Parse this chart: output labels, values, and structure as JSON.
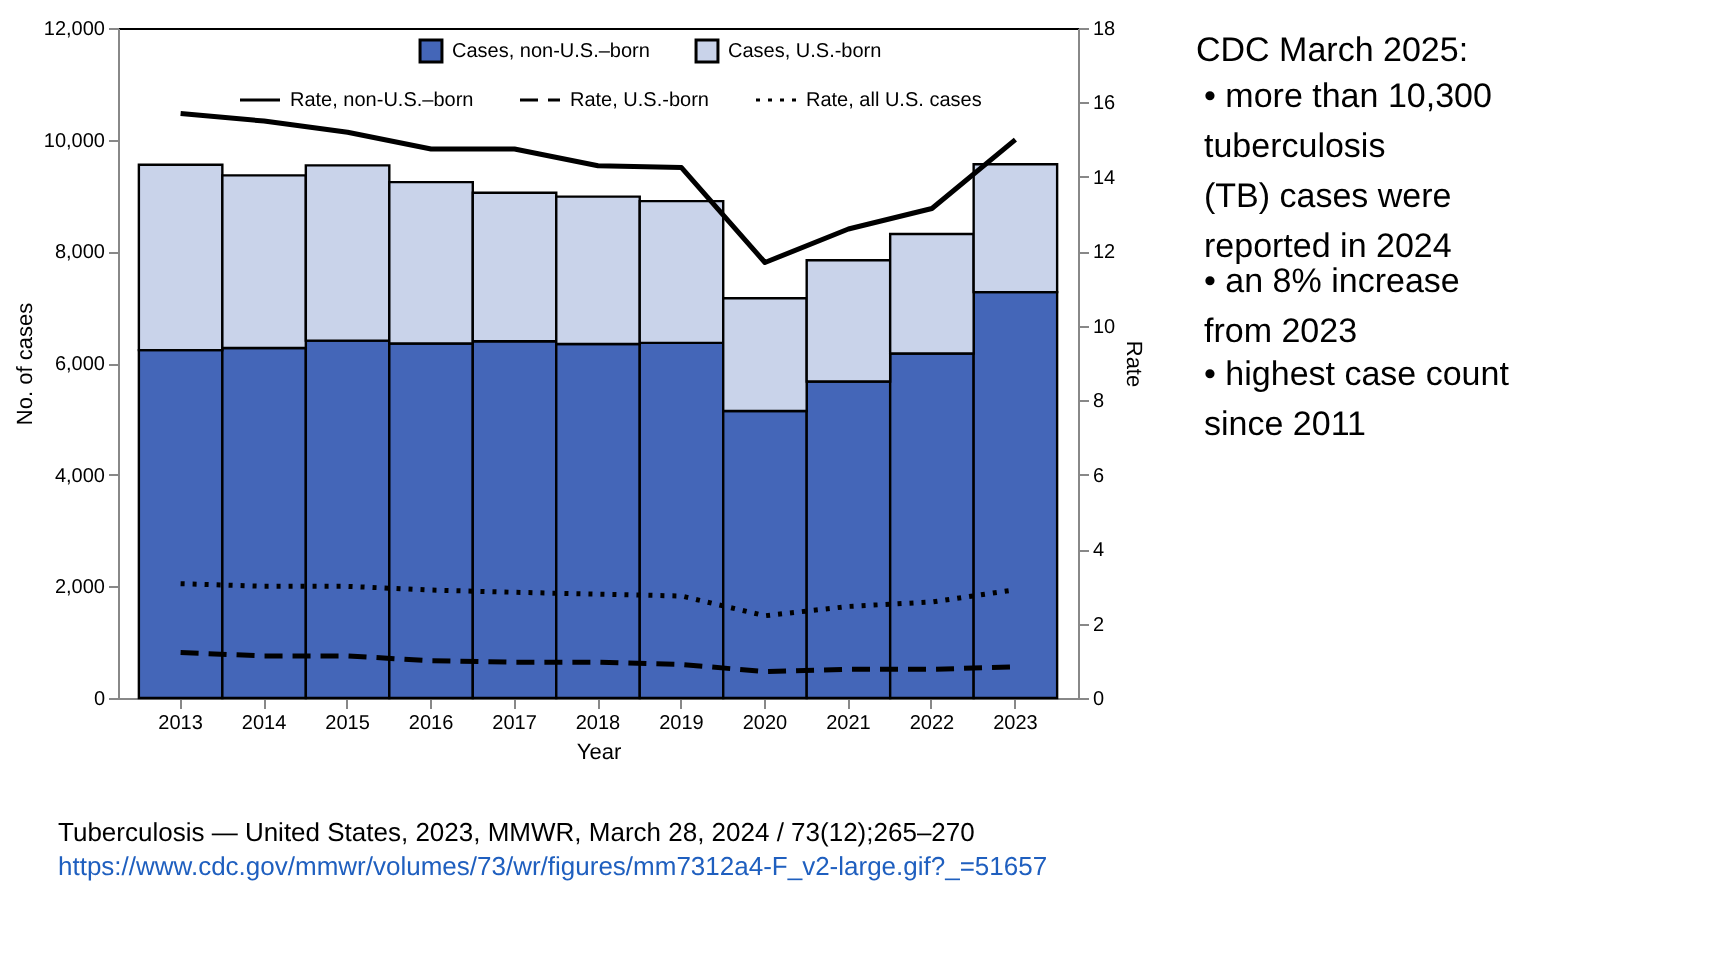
{
  "chart_data": [
    {
      "type": "bar",
      "stacked": true,
      "categories": [
        "2013",
        "2014",
        "2015",
        "2016",
        "2017",
        "2018",
        "2019",
        "2020",
        "2021",
        "2022",
        "2023"
      ],
      "xlabel": "Year",
      "ylabel": "No. of cases",
      "y2label": "Rate",
      "ylim": [
        0,
        12000
      ],
      "yticks": [
        0,
        {
          "value": 2000,
          "label": "2,000"
        },
        {
          "value": 4000,
          "label": "4,000"
        },
        {
          "value": 6000,
          "label": "6,000"
        },
        {
          "value": 8000,
          "label": "8,000"
        },
        {
          "value": 10000,
          "label": "10,000"
        },
        {
          "value": 12000,
          "label": "12,000"
        }
      ],
      "y2lim": [
        0,
        18
      ],
      "y2ticks": [
        0,
        2,
        4,
        6,
        8,
        10,
        12,
        14,
        16,
        18
      ],
      "legend": "top",
      "grid": false,
      "series": [
        {
          "name": "Cases, non-U.S.–born",
          "color": "#4466b8",
          "values": [
            6230,
            6270,
            6400,
            6350,
            6390,
            6340,
            6360,
            5140,
            5670,
            6170,
            7270
          ]
        },
        {
          "name": "Cases, U.S.-born",
          "color": "#c9d3ea",
          "values": [
            3320,
            3090,
            3140,
            2890,
            2660,
            2640,
            2540,
            2020,
            2170,
            2140,
            2290
          ]
        },
        {
          "name": "Rate, non-U.S.–born",
          "type": "line",
          "axis": "y2",
          "line_style": "solid",
          "color": "#000000",
          "values": [
            15.7,
            15.5,
            15.2,
            14.75,
            14.75,
            14.3,
            14.25,
            11.7,
            12.6,
            13.15,
            15.0
          ]
        },
        {
          "name": "Rate, U.S.-born",
          "type": "line",
          "axis": "y2",
          "line_style": "dashed",
          "color": "#000000",
          "values": [
            1.22,
            1.13,
            1.13,
            1.0,
            0.96,
            0.96,
            0.9,
            0.71,
            0.77,
            0.77,
            0.84
          ]
        },
        {
          "name": "Rate, all U.S. cases",
          "type": "line",
          "axis": "y2",
          "line_style": "dotted",
          "color": "#000000",
          "values": [
            3.07,
            3.0,
            3.0,
            2.9,
            2.84,
            2.79,
            2.74,
            2.21,
            2.46,
            2.58,
            2.91
          ]
        }
      ],
      "annotations": [
        "Tuberculosis — United States, 2023, MMWR, March 28, 2024 / 73(12);265–270",
        "https://www.cdc.gov/mmwr/volumes/73/wr/figures/mm7312a4-F_v2-large.gif?_=51657"
      ]
    },
    {
      "type": "other",
      "title": "CDC March 2025:",
      "annotations": [
        "• more than 10,300 tuberculosis (TB) cases were reported in 2024",
        "• an 8% increase from 2023",
        "• highest case count since 2011"
      ]
    }
  ]
}
